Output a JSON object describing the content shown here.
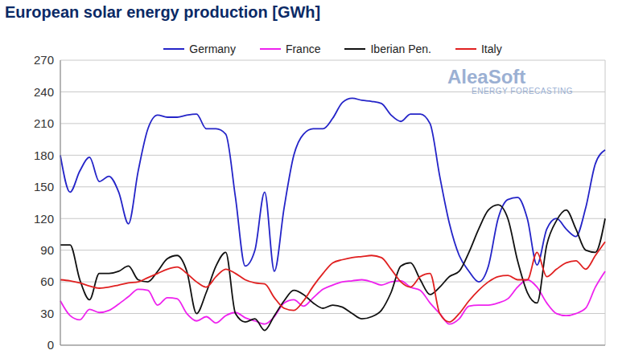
{
  "chart_data": {
    "type": "line",
    "title": "European solar energy production [GWh]",
    "annotations": [
      "AleaSoft",
      "ENERGY FORECASTING"
    ],
    "categories": [
      null,
      null,
      null,
      null,
      null,
      null,
      null,
      null,
      null,
      null,
      null,
      null,
      null,
      null,
      null,
      null,
      null,
      null,
      null,
      null,
      null,
      null,
      null,
      null,
      null,
      null,
      null,
      null,
      null,
      null,
      null,
      null,
      null,
      null,
      null,
      null,
      null,
      null,
      null,
      null,
      null,
      null,
      null,
      null,
      null,
      null,
      null,
      null,
      null,
      null,
      null,
      null,
      null,
      null,
      null,
      null,
      null
    ],
    "series": [
      {
        "name": "Germany",
        "color": "#2424c8",
        "values": [
          180,
          145,
          165,
          178,
          155,
          160,
          145,
          115,
          165,
          205,
          218,
          216,
          216,
          218,
          219,
          205,
          205,
          200,
          140,
          75,
          90,
          145,
          70,
          130,
          180,
          200,
          205,
          205,
          215,
          230,
          234,
          232,
          231,
          229,
          218,
          212,
          219,
          219,
          210,
          160,
          115,
          85,
          70,
          60,
          75,
          120,
          138,
          140,
          120,
          76,
          110,
          120,
          110,
          103,
          130,
          172,
          185
        ]
      },
      {
        "name": "France",
        "color": "#ee22ee",
        "values": [
          42,
          28,
          24,
          34,
          31,
          33,
          39,
          46,
          53,
          52,
          38,
          45,
          44,
          30,
          23,
          27,
          21,
          28,
          31,
          26,
          23,
          20,
          27,
          40,
          43,
          37,
          45,
          53,
          57,
          60,
          61,
          62,
          60,
          57,
          60,
          61,
          55,
          52,
          40,
          30,
          20,
          25,
          37,
          38,
          38,
          40,
          44,
          55,
          62,
          55,
          40,
          30,
          28,
          30,
          35,
          55,
          70
        ]
      },
      {
        "name": "Iberian Pen.",
        "color": "#111111",
        "values": [
          95,
          95,
          62,
          43,
          68,
          68,
          70,
          75,
          62,
          60,
          70,
          82,
          85,
          70,
          30,
          50,
          75,
          88,
          30,
          22,
          25,
          14,
          28,
          42,
          52,
          48,
          40,
          35,
          38,
          36,
          30,
          25,
          27,
          33,
          50,
          75,
          78,
          62,
          48,
          55,
          65,
          70,
          88,
          110,
          128,
          133,
          120,
          80,
          50,
          40,
          95,
          118,
          128,
          110,
          90,
          88,
          120
        ]
      },
      {
        "name": "Italy",
        "color": "#e02020",
        "values": [
          62,
          61,
          59,
          56,
          54,
          55,
          57,
          59,
          60,
          64,
          68,
          72,
          74,
          68,
          60,
          55,
          65,
          72,
          68,
          62,
          59,
          58,
          45,
          35,
          33,
          42,
          56,
          68,
          78,
          81,
          83,
          84,
          85,
          83,
          72,
          60,
          55,
          65,
          68,
          30,
          22,
          30,
          42,
          52,
          60,
          65,
          66,
          62,
          62,
          88,
          65,
          72,
          78,
          80,
          72,
          85,
          98
        ]
      }
    ],
    "ylim": [
      0,
      270
    ],
    "yticks": [
      0,
      30,
      60,
      90,
      120,
      150,
      180,
      210,
      240,
      270
    ],
    "grid": true,
    "legend": "top",
    "tick_labels": "y"
  }
}
